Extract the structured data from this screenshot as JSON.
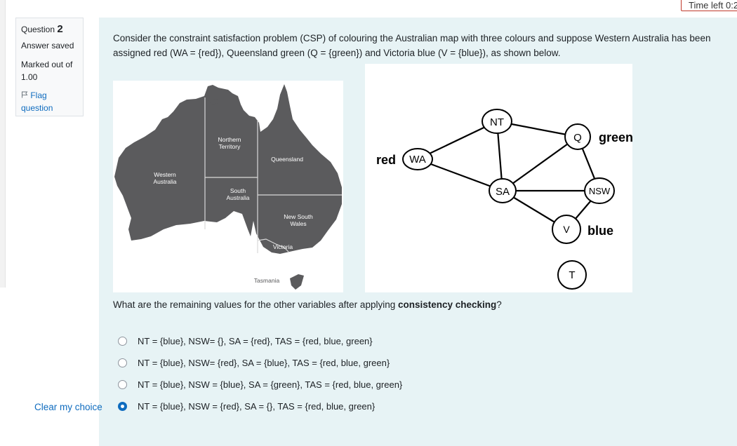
{
  "timer": {
    "label": "Time left 0:2"
  },
  "info": {
    "question_label": "Question",
    "question_number": "2",
    "state": "Answer saved",
    "grade_line1": "Marked out of",
    "grade_line2": "1.00",
    "flag_line1": "Flag",
    "flag_line2": "question"
  },
  "question": {
    "line1": "Consider the constraint satisfaction problem (CSP) of colouring the Australian map with three colours and suppose Western Australia has been",
    "line2": "assigned red (WA = {red}), Queensland green (Q = {green}) and Victoria blue (V = {blue}), as shown below.",
    "ask_prefix": "What are the remaining values for the other variables after applying ",
    "ask_bold": "consistency checking",
    "ask_suffix": "?"
  },
  "map": {
    "colors": {
      "land": "#5b5b5d",
      "border": "#d9d9d9",
      "label": "#ffffff"
    },
    "labels": {
      "nt1": "Northern",
      "nt2": "Territory",
      "wa1": "Western",
      "wa2": "Australia",
      "qld": "Queensland",
      "sa1": "South",
      "sa2": "Australia",
      "nsw1": "New South",
      "nsw2": "Wales",
      "vic": "Victoria",
      "tas": "Tasmania"
    }
  },
  "graph": {
    "nodes": {
      "wa": "WA",
      "nt": "NT",
      "sa": "SA",
      "q": "Q",
      "nsw": "NSW",
      "v": "V",
      "t": "T"
    },
    "assigned": {
      "wa": "red",
      "q": "green",
      "v": "blue"
    }
  },
  "options": [
    {
      "label": "NT = {blue}, NSW= {}, SA = {red}, TAS = {red, blue, green}",
      "checked": false
    },
    {
      "label": "NT = {blue}, NSW= {red}, SA = {blue}, TAS = {red, blue, green}",
      "checked": false
    },
    {
      "label": "NT = {blue}, NSW = {blue}, SA = {green}, TAS = {red, blue, green}",
      "checked": false
    },
    {
      "label": "NT = {blue}, NSW = {red}, SA = {}, TAS = {red, blue, green}",
      "checked": true
    }
  ],
  "clear_label": "Clear my choice"
}
